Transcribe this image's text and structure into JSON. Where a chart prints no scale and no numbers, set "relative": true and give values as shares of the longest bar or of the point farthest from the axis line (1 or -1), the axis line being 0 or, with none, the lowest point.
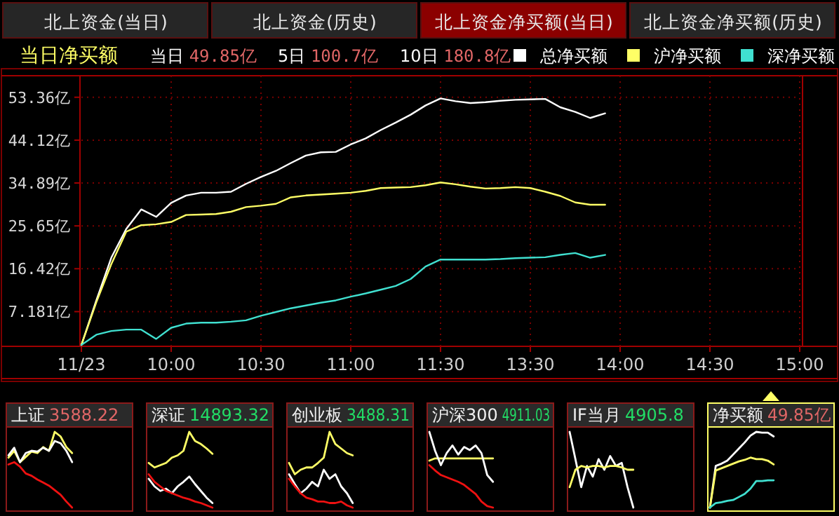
{
  "chart_data": [
    {
      "type": "line",
      "title": "当日净买额",
      "annotations": [
        "北上资金(当日)",
        "北上资金(历史)",
        "北上资金净买额(当日)",
        "北上资金净买额(历史)",
        "当日 49.85亿",
        "5日 100.7亿",
        "10日 180.8亿"
      ],
      "legend": "top",
      "grid": true,
      "categories": [
        "11/23",
        null,
        null,
        null,
        null,
        null,
        "10:00",
        null,
        null,
        null,
        null,
        null,
        "10:30",
        null,
        null,
        null,
        null,
        null,
        "11:00",
        null,
        null,
        null,
        null,
        null,
        "11:30",
        null,
        null,
        null,
        null,
        null,
        "13:30",
        null,
        null,
        null,
        null,
        null,
        "14:00",
        null,
        null,
        null,
        null,
        null,
        "14:30",
        null,
        null,
        null,
        null,
        null,
        "15:00"
      ],
      "ylim": [
        -0.3,
        58
      ],
      "yticks": [
        {
          "value": 7.181,
          "label": "7.181亿"
        },
        {
          "value": 16.42,
          "label": "16.42亿"
        },
        {
          "value": 25.65,
          "label": "25.65亿"
        },
        {
          "value": 34.89,
          "label": "34.89亿"
        },
        {
          "value": 44.12,
          "label": "44.12亿"
        },
        {
          "value": 53.36,
          "label": "53.36亿"
        }
      ],
      "series": [
        {
          "name": "总净买额",
          "color": "#ffffff",
          "values": [
            0,
            9.6,
            18.8,
            25.0,
            29.2,
            27.6,
            30.6,
            32.2,
            32.8,
            32.8,
            33.0,
            34.7,
            36.2,
            37.5,
            39.2,
            40.8,
            41.5,
            41.6,
            43.2,
            44.5,
            46.3,
            47.9,
            49.6,
            51.6,
            53.1,
            52.5,
            52.1,
            52.3,
            52.6,
            52.8,
            52.9,
            53.0,
            51.2,
            50.2,
            48.9,
            49.9,
            null,
            null,
            null,
            null,
            null,
            null,
            null,
            null,
            null,
            null,
            null,
            null,
            null
          ]
        },
        {
          "name": "沪净买额",
          "color": "#ffff66",
          "values": [
            0,
            9.2,
            17.4,
            24.4,
            25.8,
            26.0,
            26.5,
            28.0,
            28.1,
            28.2,
            28.7,
            29.7,
            30.0,
            30.4,
            31.8,
            32.2,
            32.4,
            32.6,
            32.8,
            33.2,
            33.8,
            33.9,
            34.0,
            34.4,
            35.0,
            34.6,
            34.1,
            33.7,
            33.8,
            34.0,
            33.8,
            33.0,
            32.1,
            30.7,
            30.2,
            30.2,
            null,
            null,
            null,
            null,
            null,
            null,
            null,
            null,
            null,
            null,
            null,
            null,
            null
          ]
        },
        {
          "name": "深净买额",
          "color": "#40e0d0",
          "values": [
            0,
            2.2,
            3.0,
            3.3,
            3.3,
            1.3,
            3.7,
            4.6,
            4.8,
            4.8,
            5.0,
            5.3,
            6.3,
            7.1,
            7.9,
            8.5,
            9.1,
            9.6,
            10.4,
            11.1,
            11.9,
            12.7,
            14.2,
            16.9,
            18.4,
            18.4,
            18.4,
            18.4,
            18.5,
            18.7,
            18.8,
            18.9,
            19.4,
            19.8,
            18.8,
            19.4,
            null,
            null,
            null,
            null,
            null,
            null,
            null,
            null,
            null,
            null,
            null,
            null,
            null
          ]
        }
      ]
    },
    {
      "type": "line",
      "title": "上证",
      "annotations": [
        "3588.22"
      ],
      "relative": true,
      "categories": [
        null,
        null,
        null,
        null,
        null,
        null,
        null,
        null,
        null,
        null,
        null,
        null,
        null,
        null,
        null,
        null
      ],
      "series": [
        {
          "color": "#ffff66",
          "values": [
            0.66,
            0.75,
            0.6,
            0.67,
            0.74,
            0.72,
            0.8,
            0.75,
            1.0,
            0.94,
            0.8,
            0.72,
            null,
            null,
            null,
            null
          ]
        },
        {
          "color": "#ffffff",
          "values": [
            0.69,
            0.79,
            0.6,
            0.72,
            0.75,
            0.74,
            0.79,
            0.75,
            0.88,
            0.85,
            0.75,
            0.6,
            null,
            null,
            null,
            null
          ]
        },
        {
          "color": "#ee1111",
          "values": [
            0.57,
            0.6,
            0.54,
            0.45,
            0.42,
            0.37,
            0.33,
            0.29,
            0.23,
            0.17,
            0.08,
            0,
            null,
            null,
            null,
            null
          ]
        }
      ]
    },
    {
      "type": "line",
      "title": "深证",
      "annotations": [
        "14893.32"
      ],
      "relative": true,
      "categories": [
        null,
        null,
        null,
        null,
        null,
        null,
        null,
        null,
        null,
        null,
        null,
        null,
        null,
        null,
        null,
        null
      ],
      "series": [
        {
          "color": "#ffff66",
          "values": [
            0.59,
            0.53,
            0.56,
            0.59,
            0.66,
            0.69,
            0.75,
            1.0,
            0.88,
            0.84,
            0.78,
            0.71,
            null,
            null,
            null,
            null
          ]
        },
        {
          "color": "#ffffff",
          "values": [
            0.38,
            0.28,
            0.22,
            0.25,
            0.19,
            0.28,
            0.34,
            0.41,
            0.31,
            0.22,
            0.13,
            0.06,
            null,
            null,
            null,
            null
          ]
        },
        {
          "color": "#ee1111",
          "values": [
            0.44,
            0.34,
            0.28,
            0.22,
            0.19,
            0.16,
            0.13,
            0.11,
            0.08,
            0.06,
            0.03,
            0,
            null,
            null,
            null,
            null
          ]
        }
      ]
    },
    {
      "type": "line",
      "title": "创业板",
      "annotations": [
        "3488.31"
      ],
      "relative": true,
      "categories": [
        null,
        null,
        null,
        null,
        null,
        null,
        null,
        null,
        null,
        null,
        null,
        null,
        null,
        null,
        null,
        null
      ],
      "series": [
        {
          "color": "#ffff66",
          "values": [
            0.59,
            0.44,
            0.5,
            0.53,
            0.53,
            0.59,
            0.66,
            1.0,
            0.84,
            0.78,
            0.72,
            0.69,
            null,
            null,
            null,
            null
          ]
        },
        {
          "color": "#ffffff",
          "values": [
            0.44,
            0.31,
            0.19,
            0.25,
            0.34,
            0.28,
            0.5,
            0.38,
            0.44,
            0.28,
            0.19,
            0.06,
            null,
            null,
            null,
            null
          ]
        },
        {
          "color": "#ee1111",
          "values": [
            0.38,
            0.28,
            0.19,
            0.13,
            0.11,
            0.08,
            0.08,
            0.06,
            0.06,
            0.08,
            0.03,
            0,
            null,
            null,
            null,
            null
          ]
        }
      ]
    },
    {
      "type": "line",
      "title": "沪深300",
      "annotations": [
        "4911.03"
      ],
      "relative": true,
      "categories": [
        null,
        null,
        null,
        null,
        null,
        null,
        null,
        null,
        null,
        null,
        null,
        null,
        null,
        null,
        null,
        null
      ],
      "series": [
        {
          "color": "#ffff66",
          "values": [
            0.62,
            0.65,
            0.65,
            0.65,
            0.65,
            0.65,
            0.65,
            0.65,
            0.65,
            0.65,
            0.65,
            0.65,
            null,
            null,
            null,
            null
          ]
        },
        {
          "color": "#ffffff",
          "values": [
            1.0,
            0.75,
            0.56,
            0.72,
            0.82,
            0.7,
            0.8,
            0.76,
            0.82,
            0.72,
            0.43,
            0.34,
            null,
            null,
            null,
            null
          ]
        },
        {
          "color": "#ee1111",
          "values": [
            0.56,
            0.49,
            0.43,
            0.4,
            0.37,
            0.34,
            0.3,
            0.24,
            0.18,
            0.08,
            0.02,
            0,
            null,
            null,
            null,
            null
          ]
        }
      ]
    },
    {
      "type": "line",
      "title": "IF当月",
      "annotations": [
        "4905.8"
      ],
      "relative": true,
      "categories": [
        null,
        null,
        null,
        null,
        null,
        null,
        null,
        null,
        null,
        null,
        null,
        null,
        null,
        null,
        null,
        null
      ],
      "series": [
        {
          "color": "#ffffff",
          "values": [
            1.0,
            0.64,
            0.27,
            0.55,
            0.41,
            0.64,
            0.5,
            0.68,
            0.55,
            0.59,
            0.27,
            0,
            null,
            null,
            null,
            null
          ]
        },
        {
          "color": "#ffff66",
          "values": [
            0.27,
            0.5,
            0.55,
            0.53,
            0.55,
            0.55,
            0.53,
            0.55,
            0.55,
            0.53,
            0.5,
            0.5,
            null,
            null,
            null,
            null
          ]
        }
      ]
    },
    {
      "type": "line",
      "title": "净买额",
      "annotations": [
        "49.85亿"
      ],
      "relative": true,
      "categories": [
        null,
        null,
        null,
        null,
        null,
        null,
        null,
        null,
        null,
        null,
        null,
        null,
        null,
        null,
        null,
        null
      ],
      "series": [
        {
          "color": "#ffffff",
          "values": [
            0,
            0.55,
            0.58,
            0.62,
            0.7,
            0.78,
            0.86,
            0.95,
            1.0,
            0.99,
            0.99,
            0.94,
            null,
            null,
            null,
            null
          ]
        },
        {
          "color": "#ffff66",
          "values": [
            0,
            0.49,
            0.52,
            0.55,
            0.58,
            0.61,
            0.63,
            0.66,
            0.64,
            0.64,
            0.62,
            0.57,
            null,
            null,
            null,
            null
          ]
        },
        {
          "color": "#40e0d0",
          "values": [
            0,
            0.06,
            0.07,
            0.09,
            0.1,
            0.14,
            0.18,
            0.25,
            0.35,
            0.35,
            0.36,
            0.36,
            null,
            null,
            null,
            null
          ]
        }
      ]
    }
  ]
}
